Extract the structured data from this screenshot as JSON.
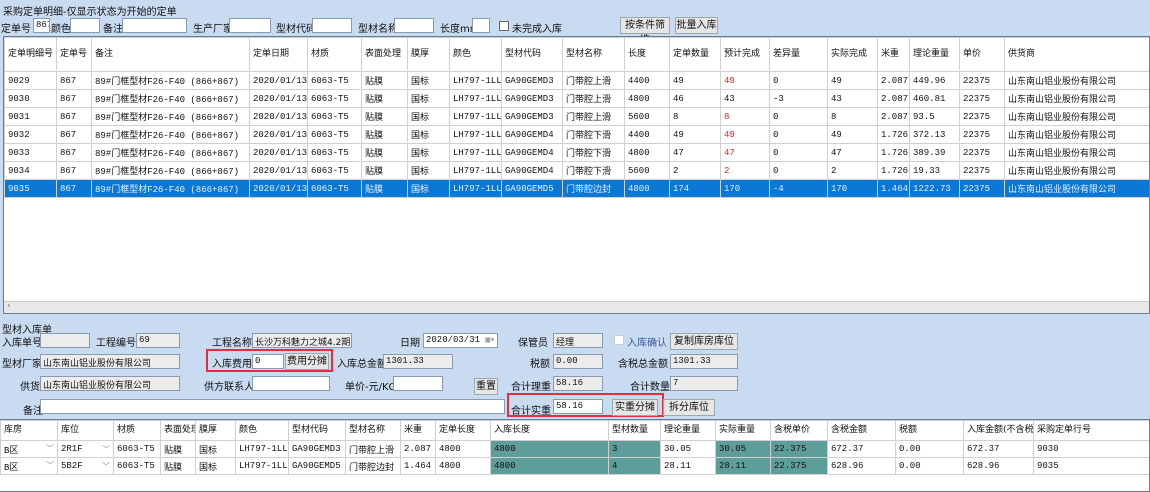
{
  "title": "采购定单明细-仅显示状态为开始的定单",
  "filters": {
    "order_no_label": "定单号",
    "order_no": "867",
    "color_label": "颜色",
    "color": "",
    "remark_label": "备注",
    "remark": "",
    "maker_label": "生产厂家",
    "maker": "",
    "code_label": "型材代码",
    "code": "",
    "name_label": "型材名称",
    "name": "",
    "length_label": "长度mm",
    "length": "",
    "unfinished_label": "未完成入库",
    "filter_btn": "按条件筛选",
    "batch_btn": "批量入库"
  },
  "orders": {
    "headers": [
      "定单明细号",
      "定单号",
      "备注",
      "定单日期",
      "材质",
      "表面处理",
      "膜厚",
      "颜色",
      "型材代码",
      "型材名称",
      "长度",
      "定单数量",
      "预计完成",
      "差异量",
      "实际完成",
      "米重",
      "理论重量",
      "单价",
      "供货商"
    ],
    "rows": [
      [
        "9029",
        "867",
        "89#门框型材F26-F40 (866+867)",
        "2020/01/13",
        "6063-T5",
        "贴膜",
        "国标",
        "LH797-1LL0",
        "GA90GEMD3",
        "门带腔上滑",
        "4400",
        "49",
        "49",
        "0",
        "49",
        "2.087",
        "449.96",
        "22375",
        "山东南山铝业股份有限公司"
      ],
      [
        "9030",
        "867",
        "89#门框型材F26-F40 (866+867)",
        "2020/01/13",
        "6063-T5",
        "贴膜",
        "国标",
        "LH797-1LL0",
        "GA90GEMD3",
        "门带腔上滑",
        "4800",
        "46",
        "43",
        "-3",
        "43",
        "2.087",
        "460.81",
        "22375",
        "山东南山铝业股份有限公司"
      ],
      [
        "9031",
        "867",
        "89#门框型材F26-F40 (866+867)",
        "2020/01/13",
        "6063-T5",
        "贴膜",
        "国标",
        "LH797-1LL0",
        "GA90GEMD3",
        "门带腔上滑",
        "5600",
        "8",
        "8",
        "0",
        "8",
        "2.087",
        "93.5",
        "22375",
        "山东南山铝业股份有限公司"
      ],
      [
        "9032",
        "867",
        "89#门框型材F26-F40 (866+867)",
        "2020/01/13",
        "6063-T5",
        "贴膜",
        "国标",
        "LH797-1LL0",
        "GA90GEMD4",
        "门带腔下滑",
        "4400",
        "49",
        "49",
        "0",
        "49",
        "1.726",
        "372.13",
        "22375",
        "山东南山铝业股份有限公司"
      ],
      [
        "9033",
        "867",
        "89#门框型材F26-F40 (866+867)",
        "2020/01/13",
        "6063-T5",
        "贴膜",
        "国标",
        "LH797-1LL0",
        "GA90GEMD4",
        "门带腔下滑",
        "4800",
        "47",
        "47",
        "0",
        "47",
        "1.726",
        "389.39",
        "22375",
        "山东南山铝业股份有限公司"
      ],
      [
        "9034",
        "867",
        "89#门框型材F26-F40 (866+867)",
        "2020/01/13",
        "6063-T5",
        "贴膜",
        "国标",
        "LH797-1LL0",
        "GA90GEMD4",
        "门带腔下滑",
        "5600",
        "2",
        "2",
        "0",
        "2",
        "1.726",
        "19.33",
        "22375",
        "山东南山铝业股份有限公司"
      ],
      [
        "9035",
        "867",
        "89#门框型材F26-F40 (866+867)",
        "2020/01/13",
        "6063-T5",
        "贴膜",
        "国标",
        "LH797-1LL0",
        "GA90GEMD5",
        "门带腔边封",
        "4800",
        "174",
        "170",
        "-4",
        "170",
        "1.464",
        "1222.73",
        "22375",
        "山东南山铝业股份有限公司"
      ]
    ],
    "red_rows": [
      0,
      2,
      3,
      4,
      5
    ],
    "selected_row": 6
  },
  "receipt": {
    "heading": "型材入库单",
    "receipt_no_label": "入库单号",
    "receipt_no": "",
    "project_no_label": "工程编号",
    "project_no": "69",
    "project_name_label": "工程名称",
    "project_name": "长沙万科魅力之城4.2期",
    "date_label": "日期",
    "date": "2020/03/31",
    "keeper_label": "保管员",
    "keeper": "经理",
    "confirm_label": "入库确认",
    "copy_btn": "复制库房库位",
    "maker_label": "型材厂家",
    "maker": "山东南山铝业股份有限公司",
    "fee_label": "入库费用",
    "fee": "0",
    "fee_btn": "费用分摊",
    "total_label": "入库总金额",
    "total": "1301.33",
    "tax_label": "税额",
    "tax": "0.00",
    "taxed_total_label": "含税总金额",
    "taxed_total": "1301.33",
    "supplier_label": "供货商",
    "supplier": "山东南山铝业股份有限公司",
    "contact_label": "供方联系人",
    "contact": "",
    "unit_price_label": "单价-元/KG",
    "unit_price": "",
    "reset_btn": "重置",
    "theory_weight_label": "合计理重",
    "theory_weight": "58.16",
    "qty_label": "合计数量",
    "qty": "7",
    "remark_label": "备注",
    "remark": "",
    "actual_weight_label": "合计实重",
    "actual_weight": "58.16",
    "actual_btn": "实重分摊",
    "split_btn": "拆分库位"
  },
  "items": {
    "headers": [
      "库房",
      "库位",
      "材质",
      "表面处理",
      "膜厚",
      "颜色",
      "型材代码",
      "型材名称",
      "米重",
      "定单长度",
      "入库长度",
      "型材数量",
      "理论重量",
      "实际重量",
      "含税单价",
      "含税金额",
      "税额",
      "入库金额(不含税)",
      "采购定单行号"
    ],
    "rows": [
      [
        "B区",
        "2R1F",
        "6063-T5",
        "贴膜",
        "国标",
        "LH797-1LL0",
        "GA90GEMD3",
        "门带腔上滑",
        "2.087",
        "4800",
        "4800",
        "3",
        "30.05",
        "30.05",
        "22.375",
        "672.37",
        "0.00",
        "672.37",
        "9030"
      ],
      [
        "B区",
        "5B2F",
        "6063-T5",
        "贴膜",
        "国标",
        "LH797-1LL0",
        "GA90GEMD5",
        "门带腔边封",
        "1.464",
        "4800",
        "4800",
        "4",
        "28.11",
        "28.11",
        "22.375",
        "628.96",
        "0.00",
        "628.96",
        "9035"
      ]
    ],
    "teal_cols": [
      10,
      11,
      13,
      14
    ]
  },
  "colors": {
    "selected": "#0a78d4",
    "teal": "#5e9e9a",
    "highlight_box": "#e03040",
    "panel": "#c9dbf0"
  }
}
